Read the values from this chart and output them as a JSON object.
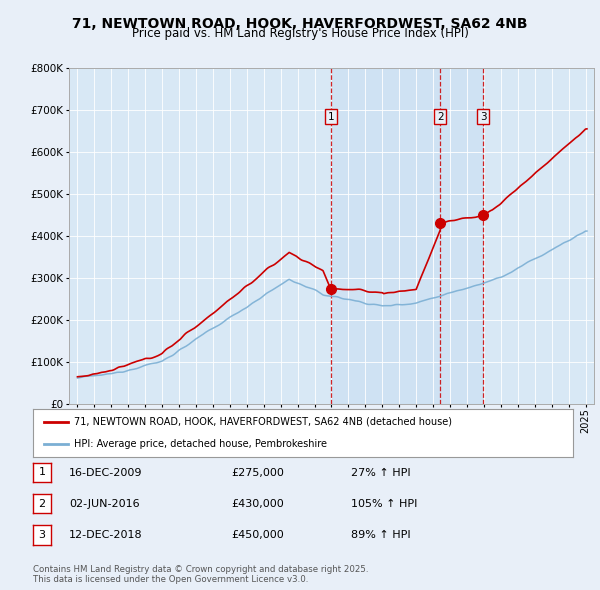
{
  "title1": "71, NEWTOWN ROAD, HOOK, HAVERFORDWEST, SA62 4NB",
  "title2": "Price paid vs. HM Land Registry's House Price Index (HPI)",
  "legend_label1": "71, NEWTOWN ROAD, HOOK, HAVERFORDWEST, SA62 4NB (detached house)",
  "legend_label2": "HPI: Average price, detached house, Pembrokeshire",
  "footnote": "Contains HM Land Registry data © Crown copyright and database right 2025.\nThis data is licensed under the Open Government Licence v3.0.",
  "transactions": [
    {
      "num": 1,
      "date": "16-DEC-2009",
      "price": 275000,
      "hpi_pct": "27% ↑ HPI",
      "year": 2009.96
    },
    {
      "num": 2,
      "date": "02-JUN-2016",
      "price": 430000,
      "hpi_pct": "105% ↑ HPI",
      "year": 2016.42
    },
    {
      "num": 3,
      "date": "12-DEC-2018",
      "price": 450000,
      "hpi_pct": "89% ↑ HPI",
      "year": 2018.95
    }
  ],
  "price_color": "#cc0000",
  "hpi_color": "#7bafd4",
  "vline_color": "#cc0000",
  "bg_color": "#e8eff8",
  "plot_bg": "#d8e8f5",
  "highlight_bg": "#daeaf8",
  "ylim": [
    0,
    800000
  ],
  "yticks": [
    0,
    100000,
    200000,
    300000,
    400000,
    500000,
    600000,
    700000,
    800000
  ],
  "xlim_start": 1994.5,
  "xlim_end": 2025.5
}
